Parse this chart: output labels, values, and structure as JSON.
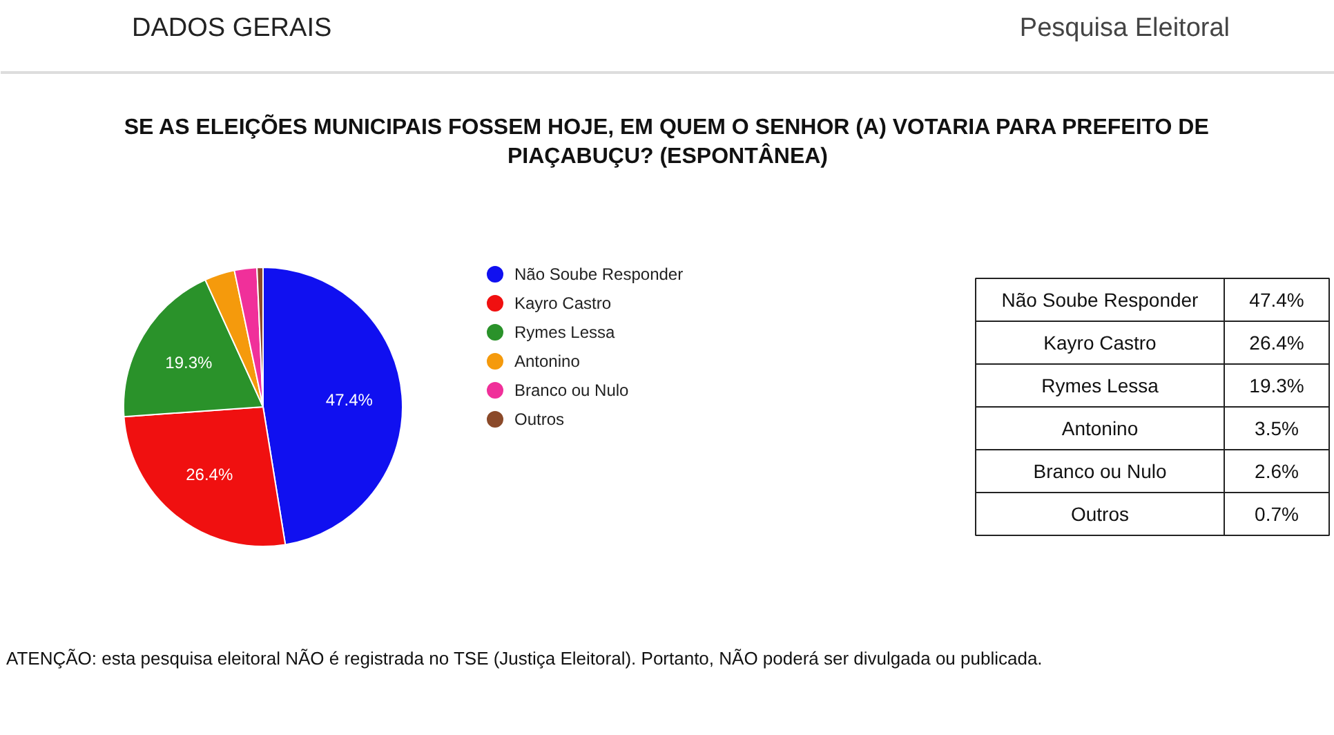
{
  "chart_data": {
    "type": "pie",
    "title": "SE AS ELEIÇÕES MUNICIPAIS FOSSEM HOJE, EM QUEM O SENHOR (A) VOTARIA PARA PREFEITO DE\nPIAÇABUÇU? (ESPONTÂNEA)",
    "categories": [
      "Não Soube Responder",
      "Kayro Castro",
      "Rymes Lessa",
      "Antonino",
      "Branco ou Nulo",
      "Outros"
    ],
    "values": [
      47.4,
      26.4,
      19.3,
      3.5,
      2.6,
      0.7
    ],
    "colors": [
      "#1010f0",
      "#f01010",
      "#2a922a",
      "#f59a0c",
      "#f0309a",
      "#8b4a2a"
    ],
    "value_labels": [
      "47.4%",
      "26.4%",
      "19.3%",
      null,
      null,
      null
    ],
    "legend": "right",
    "annotations": [
      "DADOS GERAIS",
      "Pesquisa Eleitoral",
      "ATENÇÃO: esta pesquisa eleitoral NÃO é registrada no TSE (Justiça Eleitoral). Portanto, NÃO poderá ser divulgada ou publicada.",
      "47.4%",
      "26.4%",
      "19.3%",
      "3.5%",
      "2.6%",
      "0.7%"
    ]
  }
}
